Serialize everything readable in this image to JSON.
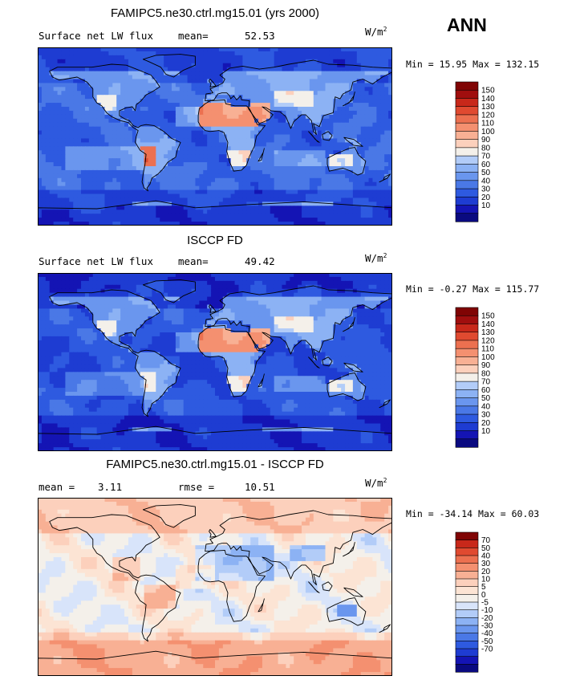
{
  "season": "ANN",
  "units": {
    "base": "W/m",
    "exp": "2"
  },
  "colors": {
    "abs_palette": [
      "#0a0a80",
      "#1414b4",
      "#1e3cd2",
      "#2e5ae0",
      "#4a78e6",
      "#6a96ee",
      "#8cb2f4",
      "#b2ccf8",
      "#f4f0ea",
      "#fcd0bc",
      "#f8b094",
      "#f49070",
      "#ec7050",
      "#e04a30",
      "#c8281a",
      "#a00e0e",
      "#800404"
    ],
    "diff_palette": [
      "#0a0a80",
      "#1414b4",
      "#1e3cd2",
      "#2e5ae0",
      "#4a78e6",
      "#6a96ee",
      "#8cb2f4",
      "#b2ccf8",
      "#d8e4fa",
      "#f4f0ea",
      "#fce4d4",
      "#fcd0bc",
      "#f8b094",
      "#f49070",
      "#ec7050",
      "#e04a30",
      "#c8281a",
      "#800404"
    ]
  },
  "chart_data": [
    {
      "type": "heatmap",
      "title": "FAMIPC5.ne30.ctrl.mg15.01 (yrs 2000)",
      "left_label": "Surface net LW flux",
      "stat_label": "mean=",
      "stat_value": "52.53",
      "min_label": "Min =",
      "min_value": "15.95",
      "max_label": "Max =",
      "max_value": "132.15",
      "colorbar_levels": [
        "150",
        "140",
        "130",
        "120",
        "110",
        "100",
        "90",
        "80",
        "70",
        "60",
        "50",
        "40",
        "30",
        "20",
        "10"
      ],
      "field_mode": "model"
    },
    {
      "type": "heatmap",
      "title": "ISCCP FD",
      "left_label": "Surface net LW flux",
      "stat_label": "mean=",
      "stat_value": "49.42",
      "min_label": "Min =",
      "min_value": "-0.27",
      "max_label": "Max =",
      "max_value": "115.77",
      "colorbar_levels": [
        "150",
        "140",
        "130",
        "120",
        "110",
        "100",
        "90",
        "80",
        "70",
        "60",
        "50",
        "40",
        "30",
        "20",
        "10"
      ],
      "field_mode": "obs"
    },
    {
      "type": "heatmap",
      "title": "FAMIPC5.ne30.ctrl.mg15.01 - ISCCP FD",
      "left_label": "mean =",
      "left_value": "3.11",
      "stat_label": "rmse =",
      "stat_value": "10.51",
      "min_label": "Min =",
      "min_value": "-34.14",
      "max_label": "Max =",
      "max_value": "60.03",
      "colorbar_levels": [
        "70",
        "50",
        "40",
        "30",
        "20",
        "10",
        "5",
        "0",
        "-5",
        "-10",
        "-20",
        "-30",
        "-40",
        "-50",
        "-70"
      ],
      "field_mode": "diff"
    }
  ]
}
